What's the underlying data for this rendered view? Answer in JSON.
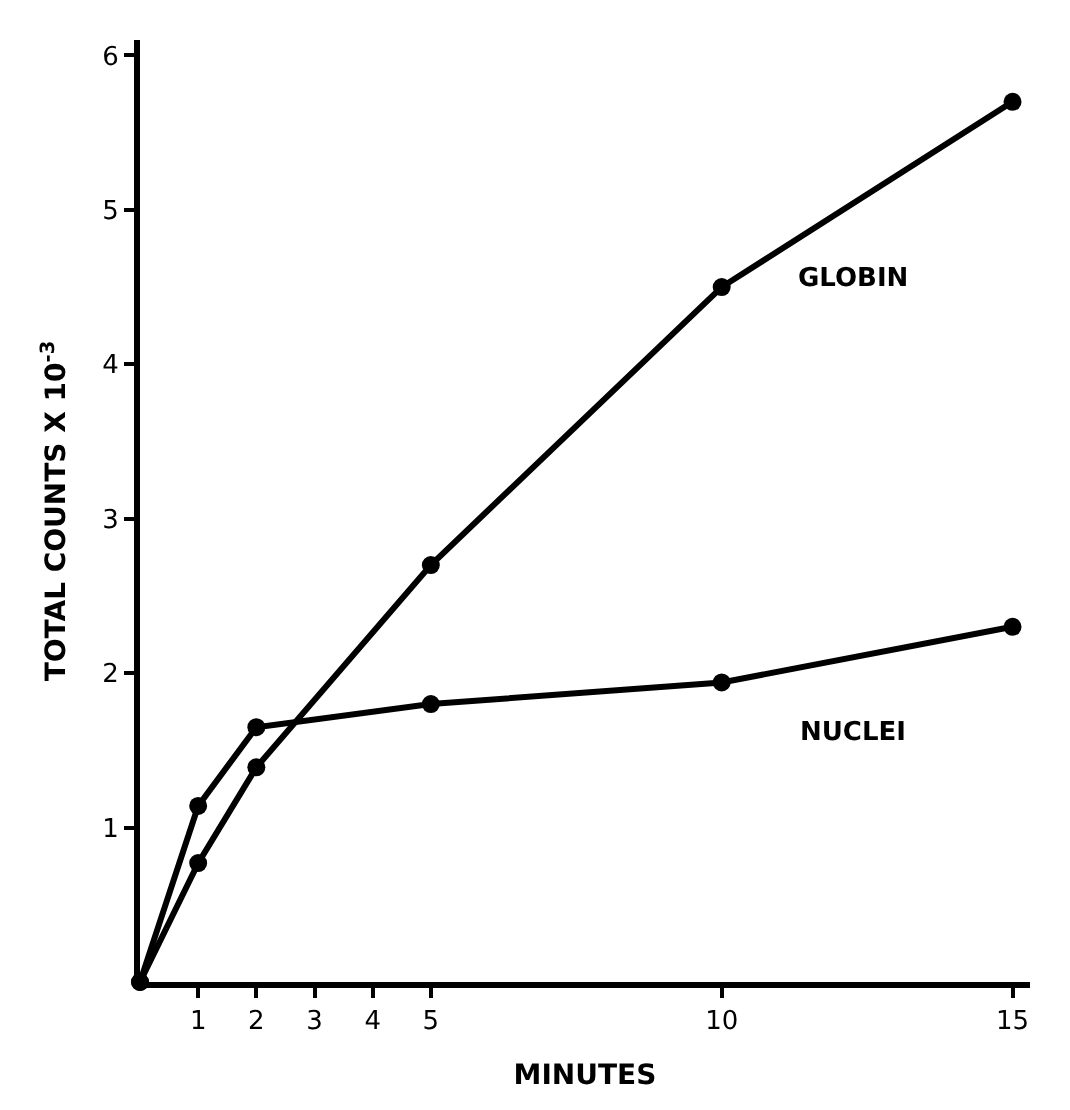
{
  "chart_data": {
    "type": "line",
    "xlabel": "MINUTES",
    "ylabel": "TOTAL COUNTS X 10$^{-3}$",
    "x": [
      0,
      1,
      2,
      5,
      10,
      15
    ],
    "series": [
      {
        "name": "GLOBIN",
        "color": "#000000",
        "values": [
          0,
          0.77,
          1.39,
          2.7,
          4.5,
          5.7
        ]
      },
      {
        "name": "NUCLEI",
        "color": "#000000",
        "values": [
          0,
          1.14,
          1.65,
          1.8,
          1.94,
          2.3
        ]
      }
    ],
    "xlim": [
      0,
      15.3
    ],
    "ylim": [
      0,
      6.1
    ],
    "xticks": [
      1,
      2,
      3,
      4,
      5,
      10,
      15
    ],
    "yticks": [
      1,
      2,
      3,
      4,
      5,
      6
    ],
    "legend": false,
    "marker": "circle",
    "line_style": "solid"
  }
}
